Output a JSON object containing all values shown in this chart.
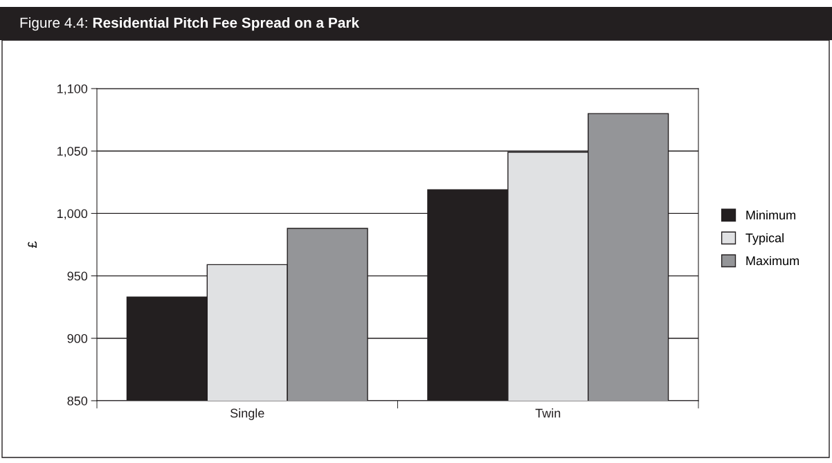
{
  "chart_data": {
    "type": "bar",
    "title": "Figure 4.4: Residential Pitch Fee Spread on a Park",
    "ylabel": "£",
    "categories": [
      "Single",
      "Twin"
    ],
    "series": [
      {
        "name": "Minimum",
        "color": "#231f20",
        "values": [
          933,
          1019
        ]
      },
      {
        "name": "Typical",
        "color": "#e0e1e3",
        "values": [
          959,
          1049
        ]
      },
      {
        "name": "Maximum",
        "color": "#949598",
        "values": [
          988,
          1080
        ]
      }
    ],
    "ylim": [
      850,
      1100
    ],
    "yticks": [
      {
        "value": 850,
        "label": "850"
      },
      {
        "value": 900,
        "label": "900"
      },
      {
        "value": 950,
        "label": "950"
      },
      {
        "value": 1000,
        "label": "1,000"
      },
      {
        "value": 1050,
        "label": "1,050"
      },
      {
        "value": 1100,
        "label": "1,100"
      }
    ],
    "grid": "y",
    "legend": "right"
  }
}
